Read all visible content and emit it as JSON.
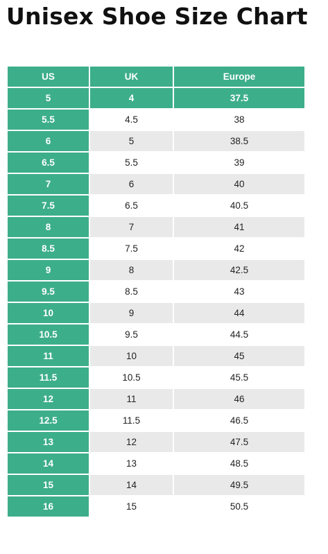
{
  "title": "Unisex Shoe Size Chart",
  "colors": {
    "accent": "#3dae8a",
    "row_alt": "#e9e9e9",
    "text": "#222222"
  },
  "table": {
    "headers": [
      "US",
      "UK",
      "Europe"
    ],
    "rows": [
      [
        "5",
        "4",
        "37.5"
      ],
      [
        "5.5",
        "4.5",
        "38"
      ],
      [
        "6",
        "5",
        "38.5"
      ],
      [
        "6.5",
        "5.5",
        "39"
      ],
      [
        "7",
        "6",
        "40"
      ],
      [
        "7.5",
        "6.5",
        "40.5"
      ],
      [
        "8",
        "7",
        "41"
      ],
      [
        "8.5",
        "7.5",
        "42"
      ],
      [
        "9",
        "8",
        "42.5"
      ],
      [
        "9.5",
        "8.5",
        "43"
      ],
      [
        "10",
        "9",
        "44"
      ],
      [
        "10.5",
        "9.5",
        "44.5"
      ],
      [
        "11",
        "10",
        "45"
      ],
      [
        "11.5",
        "10.5",
        "45.5"
      ],
      [
        "12",
        "11",
        "46"
      ],
      [
        "12.5",
        "11.5",
        "46.5"
      ],
      [
        "13",
        "12",
        "47.5"
      ],
      [
        "14",
        "13",
        "48.5"
      ],
      [
        "15",
        "14",
        "49.5"
      ],
      [
        "16",
        "15",
        "50.5"
      ]
    ]
  }
}
